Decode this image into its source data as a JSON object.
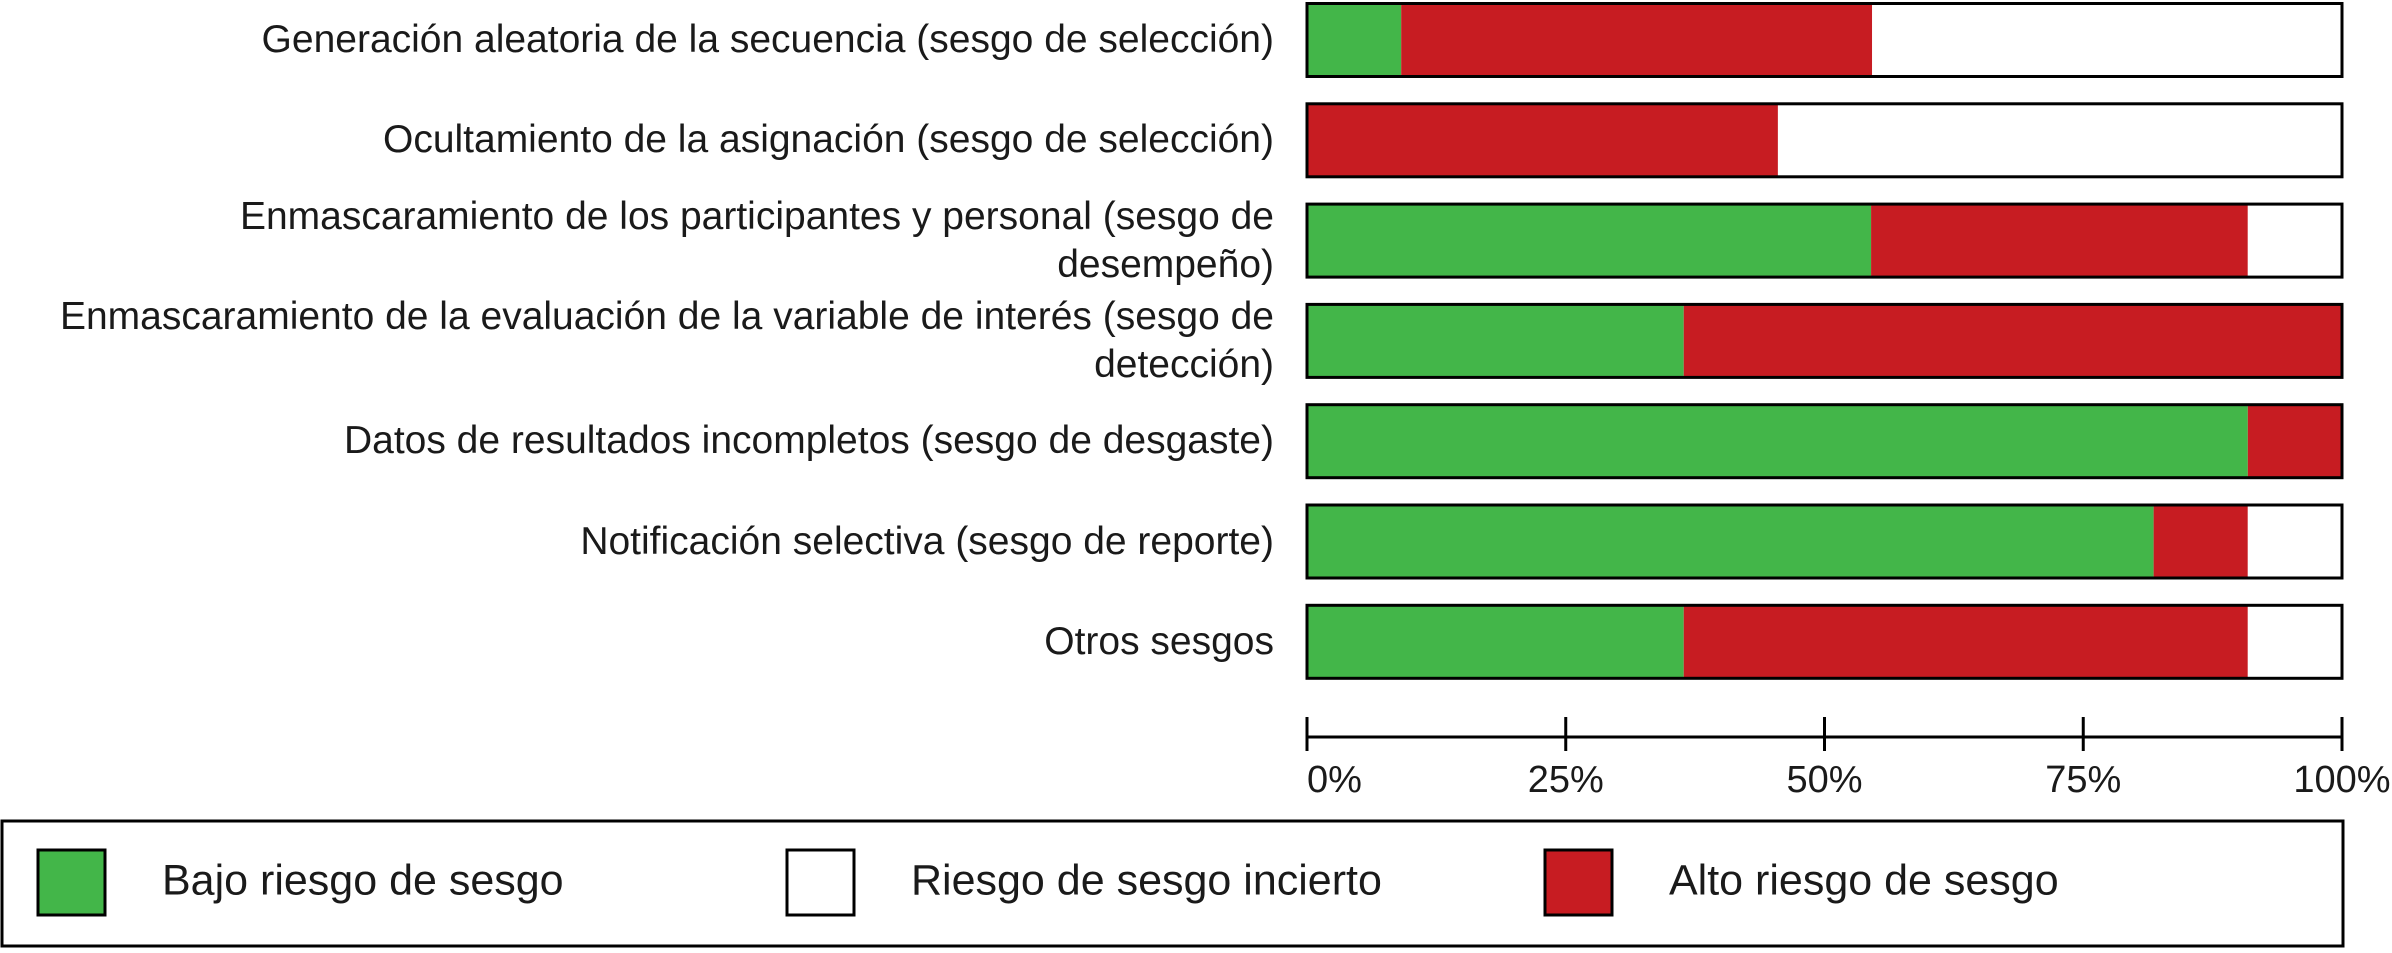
{
  "chart_data": {
    "type": "stacked-barh",
    "categories": [
      "Generación aleatoria de la secuencia (sesgo de selección)",
      "Ocultamiento de la asignación (sesgo de selección)",
      "Enmascaramiento de los participantes y personal (sesgo de desempeño)",
      "Enmascaramiento de la evaluación de la variable de interés (sesgo de detección)",
      "Datos de resultados incompletos (sesgo de desgaste)",
      "Notificación selectiva (sesgo de reporte)",
      "Otros sesgos"
    ],
    "series": [
      {
        "name": "Bajo riesgo de sesgo",
        "color": "#43b649",
        "values": [
          9.1,
          0,
          54.5,
          36.4,
          90.9,
          81.8,
          36.4
        ]
      },
      {
        "name": "Riesgo de sesgo incierto",
        "color": "#ffffff",
        "values": [
          45.5,
          54.5,
          9.1,
          0,
          0,
          9.1,
          9.1
        ]
      },
      {
        "name": "Alto riesgo de sesgo",
        "color": "#c71c22",
        "values": [
          45.5,
          45.5,
          36.4,
          63.6,
          9.1,
          9.1,
          54.5
        ]
      }
    ],
    "xlim": [
      0,
      100
    ],
    "xticks": [
      {
        "value": 0,
        "label": "0%"
      },
      {
        "value": 25,
        "label": "25%"
      },
      {
        "value": 50,
        "label": "50%"
      },
      {
        "value": 75,
        "label": "75%"
      },
      {
        "value": 100,
        "label": "100%"
      }
    ]
  }
}
